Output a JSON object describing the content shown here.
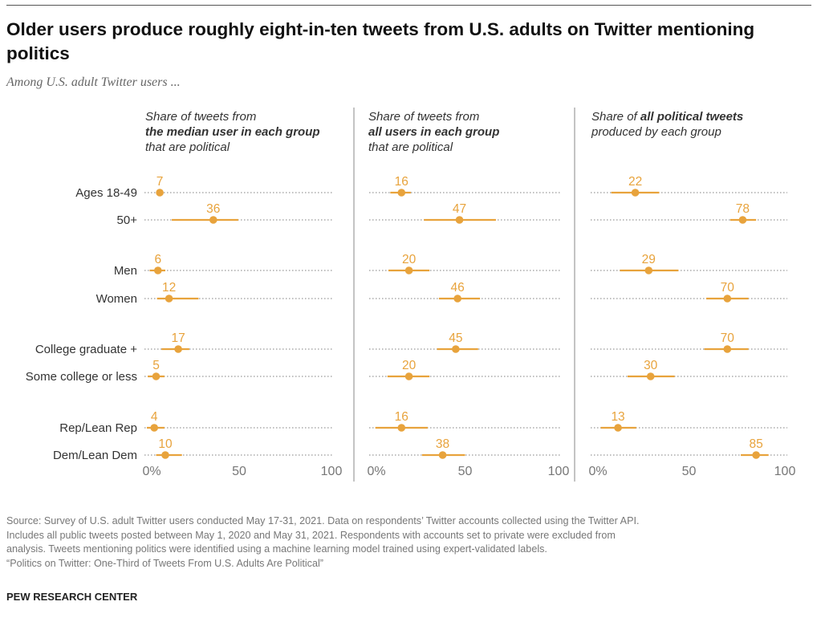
{
  "title": "Older users produce roughly eight-in-ten tweets from U.S. adults on Twitter mentioning politics",
  "subtitle": "Among U.S. adult Twitter users ...",
  "colors": {
    "accent": "#E8A33C",
    "dots": "#999999",
    "divider": "#888888"
  },
  "chart_data": {
    "type": "dot-plot with error bars",
    "categories": [
      "Ages 18-49",
      "50+",
      "Men",
      "Women",
      "College graduate +",
      "Some college or less",
      "Rep/Lean Rep",
      "Dem/Lean Dem"
    ],
    "xlim": [
      0,
      100
    ],
    "tick_labels": [
      "0%",
      "50",
      "100"
    ],
    "panels": [
      {
        "heading_pre": "Share of tweets from",
        "heading_bold": "the median user in each group",
        "heading_post": "that are political",
        "values": [
          7,
          36,
          6,
          12,
          17,
          5,
          4,
          10
        ],
        "intervals": [
          [
            6,
            8
          ],
          [
            13.5,
            49.5
          ],
          [
            1.5,
            10
          ],
          [
            5.5,
            28
          ],
          [
            8,
            23
          ],
          [
            0.5,
            9.5
          ],
          [
            0,
            9.5
          ],
          [
            5,
            19
          ]
        ]
      },
      {
        "heading_pre": "Share of tweets from",
        "heading_bold": "all users in each group",
        "heading_post": "that are political",
        "values": [
          16,
          47,
          20,
          46,
          45,
          20,
          16,
          38
        ],
        "intervals": [
          [
            10,
            21
          ],
          [
            28,
            66.5
          ],
          [
            9,
            31
          ],
          [
            36,
            58
          ],
          [
            35,
            57
          ],
          [
            8.5,
            31
          ],
          [
            2,
            30
          ],
          [
            27,
            50
          ]
        ]
      },
      {
        "heading_pre": "Share of ",
        "heading_bold": "all political tweets",
        "heading_post": "produced by each group",
        "values": [
          22,
          78,
          29,
          70,
          70,
          30,
          13,
          85
        ],
        "intervals": [
          [
            9.5,
            34.5
          ],
          [
            71.5,
            85
          ],
          [
            14,
            44.5
          ],
          [
            59,
            81
          ],
          [
            58,
            81
          ],
          [
            18,
            42.5
          ],
          [
            4,
            22.5
          ],
          [
            77,
            91.5
          ]
        ]
      }
    ]
  },
  "source": [
    "Source: Survey of U.S. adult Twitter users conducted May 17-31, 2021. Data on respondents’ Twitter accounts collected using the Twitter API.",
    "Includes all public tweets posted between May 1, 2020 and May 31, 2021. Respondents with accounts set to private were excluded from",
    "analysis. Tweets mentioning politics were identified using a machine learning model trained using expert-validated labels.",
    "“Politics on Twitter: One-Third of Tweets From U.S. Adults Are Political”"
  ],
  "brand": "PEW RESEARCH CENTER"
}
